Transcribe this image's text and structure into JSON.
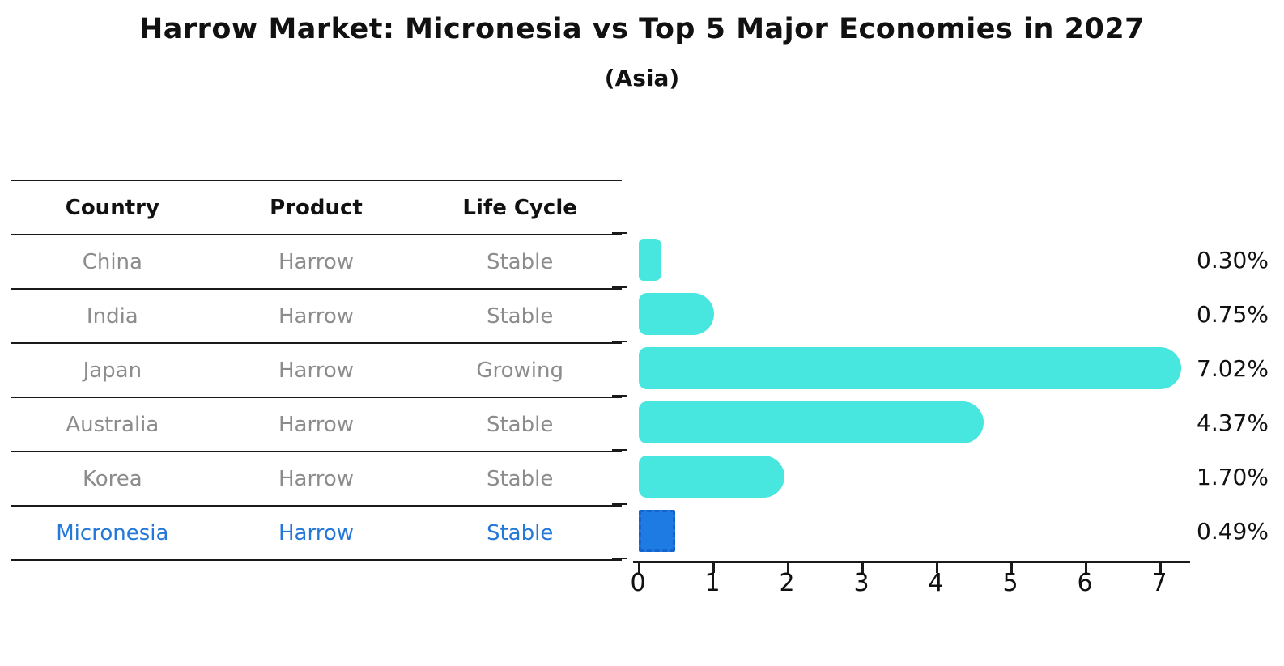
{
  "title": "Harrow Market: Micronesia vs Top 5 Major Economies in 2027",
  "subtitle": "(Asia)",
  "table": {
    "headers": [
      "Country",
      "Product",
      "Life Cycle"
    ],
    "rows": [
      {
        "cells": [
          "China",
          "Harrow",
          "Stable"
        ],
        "highlight": false
      },
      {
        "cells": [
          "India",
          "Harrow",
          "Stable"
        ],
        "highlight": false
      },
      {
        "cells": [
          "Japan",
          "Harrow",
          "Growing"
        ],
        "highlight": false
      },
      {
        "cells": [
          "Australia",
          "Harrow",
          "Stable"
        ],
        "highlight": false
      },
      {
        "cells": [
          "Korea",
          "Harrow",
          "Stable"
        ],
        "highlight": true,
        "highlight_override": false
      },
      {
        "cells": [
          "Micronesia",
          "Harrow",
          "Stable"
        ],
        "highlight": true
      }
    ]
  },
  "chart_data": {
    "type": "bar",
    "orientation": "horizontal",
    "title": "Harrow Market: Micronesia vs Top 5 Major Economies in 2027",
    "subtitle": "(Asia)",
    "categories": [
      "China",
      "India",
      "Japan",
      "Australia",
      "Korea",
      "Micronesia"
    ],
    "values": [
      0.3,
      0.75,
      7.02,
      4.37,
      1.7,
      0.49
    ],
    "value_labels": [
      "0.30%",
      "0.75%",
      "7.02%",
      "4.37%",
      "1.70%",
      "0.49%"
    ],
    "x_ticks": [
      0,
      1,
      2,
      3,
      4,
      5,
      6,
      7
    ],
    "xlim": [
      0,
      7.4
    ],
    "grid": false,
    "legend": false,
    "highlight_index": 5,
    "bars": [
      {
        "category": "China",
        "value": 0.3,
        "label": "0.30%",
        "highlight": false,
        "round_cap": false
      },
      {
        "category": "India",
        "value": 0.75,
        "label": "0.75%",
        "highlight": false,
        "round_cap": true
      },
      {
        "category": "Japan",
        "value": 7.02,
        "label": "7.02%",
        "highlight": false,
        "round_cap": true
      },
      {
        "category": "Australia",
        "value": 4.37,
        "label": "4.37%",
        "highlight": false,
        "round_cap": true
      },
      {
        "category": "Korea",
        "value": 1.7,
        "label": "1.70%",
        "highlight": false,
        "round_cap": true
      },
      {
        "category": "Micronesia",
        "value": 0.49,
        "label": "0.49%",
        "highlight": true,
        "round_cap": false
      }
    ]
  },
  "colors": {
    "bar_default": "#47E6DE",
    "bar_highlight": "#1E7BE4",
    "bar_highlight_border": "#1563CC",
    "highlight_text": "#2478D8",
    "table_text": "#8C8C8C",
    "heading_text": "#111111",
    "axis": "#1A1A1A"
  }
}
